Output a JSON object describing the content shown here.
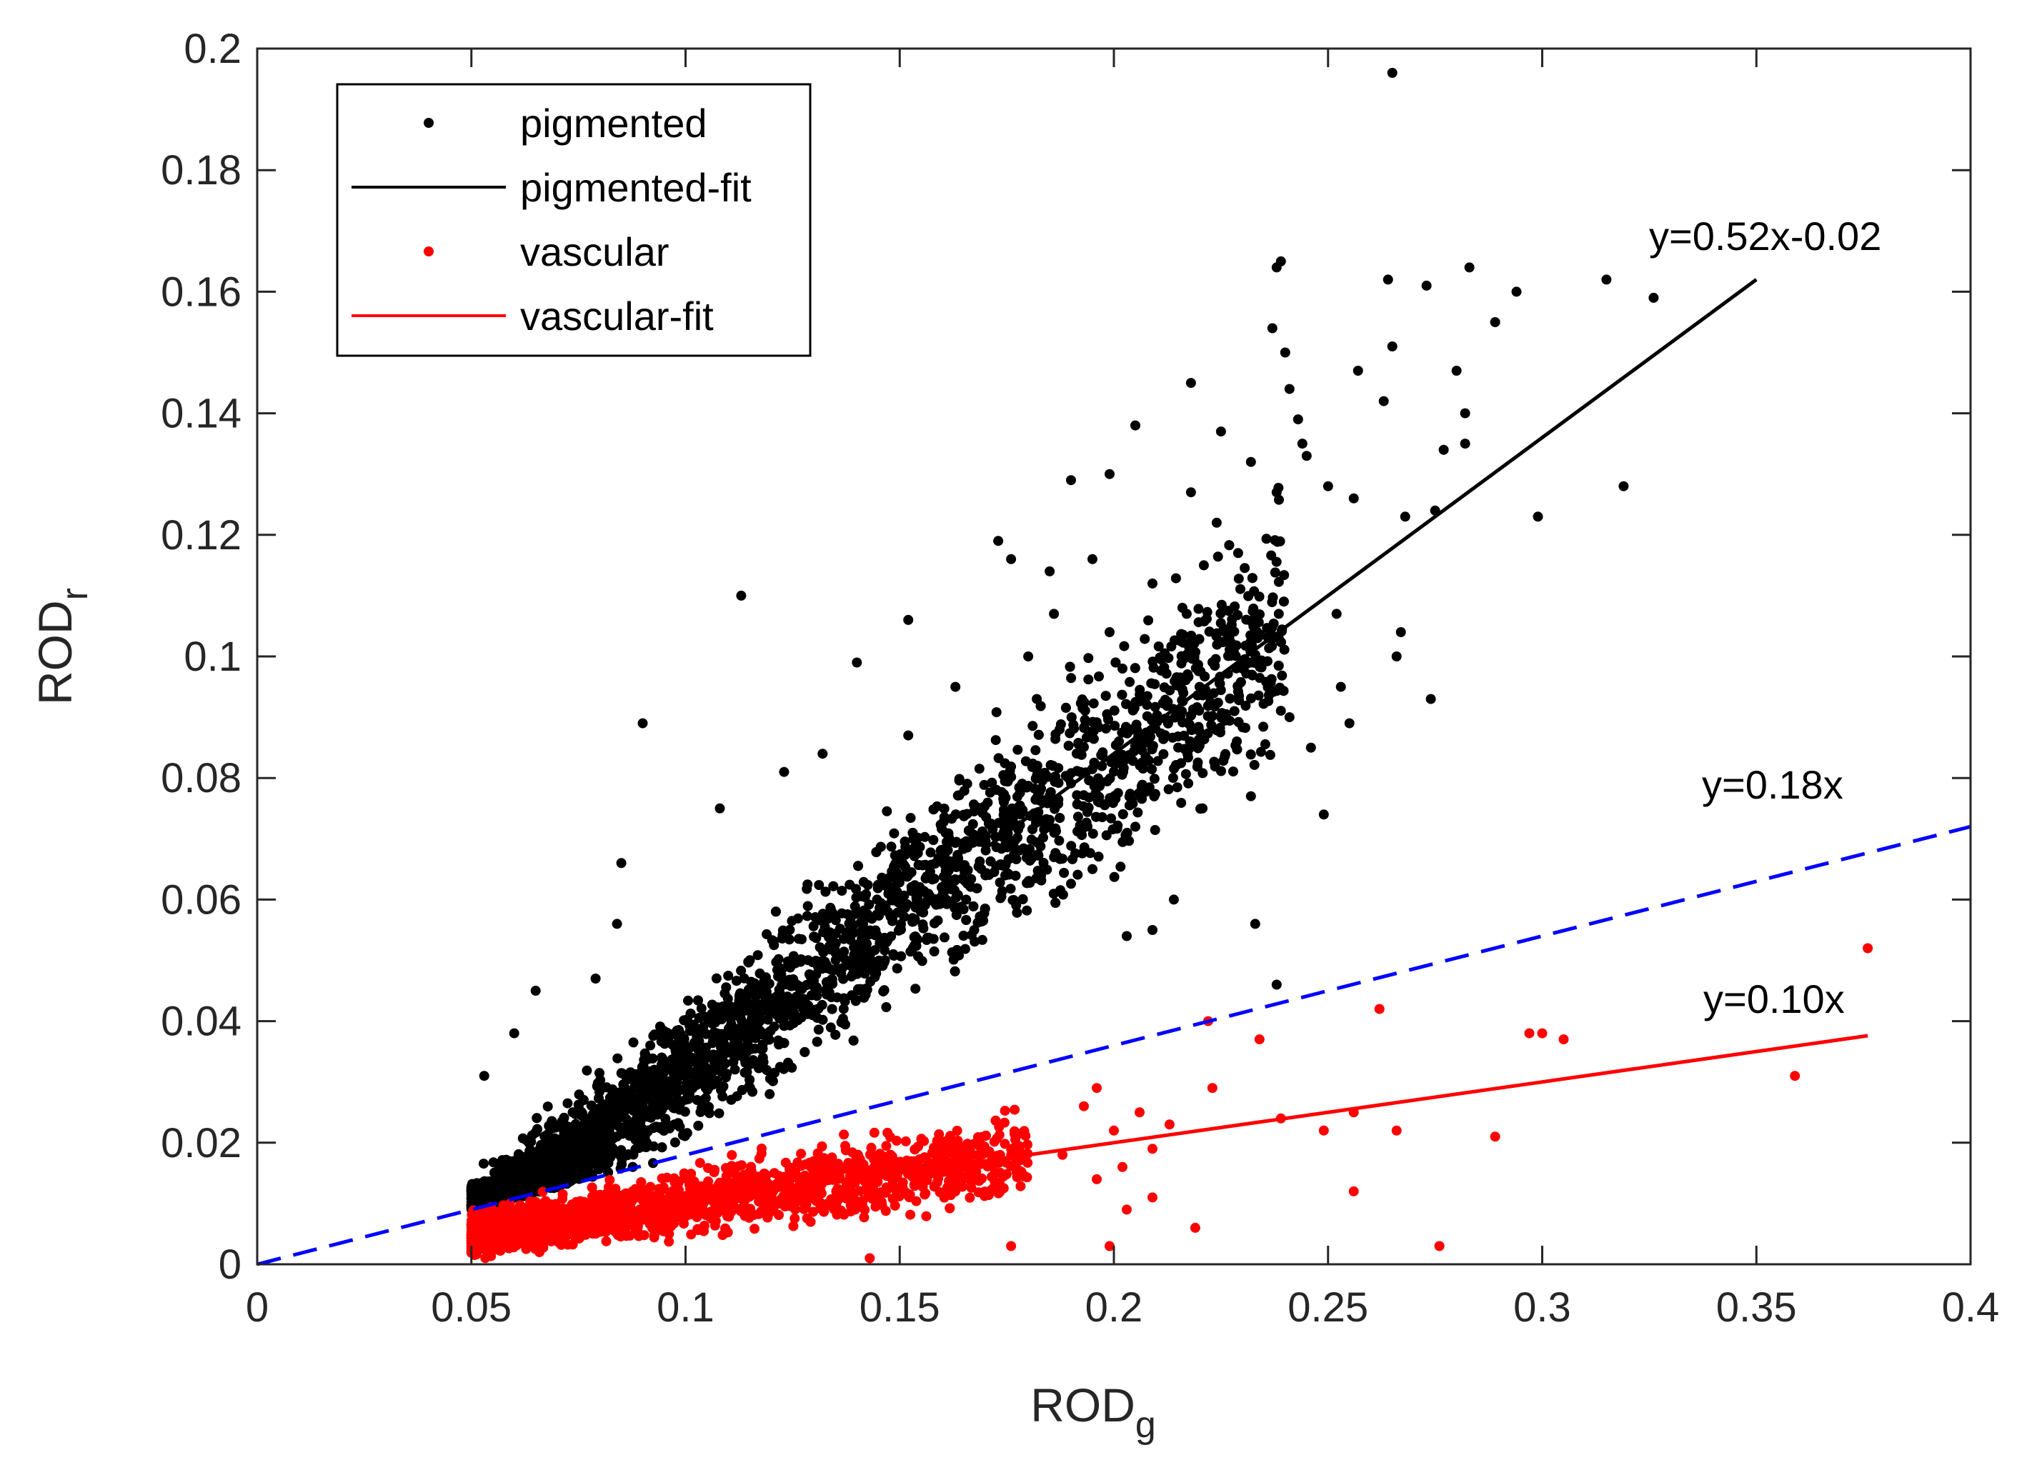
{
  "chart_data": {
    "type": "scatter",
    "title": "",
    "xlabel": "ROD",
    "xlabel_subscript": "g",
    "ylabel": "ROD",
    "ylabel_subscript": "r",
    "xlim": [
      0,
      0.4
    ],
    "ylim": [
      0,
      0.2
    ],
    "xticks": [
      0,
      0.05,
      0.1,
      0.15,
      0.2,
      0.25,
      0.3,
      0.35,
      0.4
    ],
    "xtick_labels": [
      "0",
      "0.05",
      "0.1",
      "0.15",
      "0.2",
      "0.25",
      "0.3",
      "0.35",
      "0.4"
    ],
    "yticks": [
      0,
      0.02,
      0.04,
      0.06,
      0.08,
      0.1,
      0.12,
      0.14,
      0.16,
      0.18,
      0.2
    ],
    "ytick_labels": [
      "0",
      "0.02",
      "0.04",
      "0.06",
      "0.08",
      "0.1",
      "0.12",
      "0.14",
      "0.16",
      "0.18",
      "0.2"
    ],
    "legend_position": "top-left",
    "colors": {
      "pigmented": "#000000",
      "vascular": "#ff0000",
      "threshold": "#0000ff"
    },
    "series": [
      {
        "name": "pigmented",
        "kind": "scatter",
        "color": "#000000",
        "points": [
          [
            0.265,
            0.196
          ],
          [
            0.239,
            0.165
          ],
          [
            0.238,
            0.164
          ],
          [
            0.283,
            0.164
          ],
          [
            0.264,
            0.162
          ],
          [
            0.273,
            0.161
          ],
          [
            0.315,
            0.162
          ],
          [
            0.326,
            0.159
          ],
          [
            0.294,
            0.16
          ],
          [
            0.289,
            0.155
          ],
          [
            0.237,
            0.154
          ],
          [
            0.24,
            0.15
          ],
          [
            0.265,
            0.151
          ],
          [
            0.257,
            0.147
          ],
          [
            0.28,
            0.147
          ],
          [
            0.218,
            0.145
          ],
          [
            0.241,
            0.144
          ],
          [
            0.263,
            0.142
          ],
          [
            0.282,
            0.14
          ],
          [
            0.243,
            0.139
          ],
          [
            0.205,
            0.138
          ],
          [
            0.225,
            0.137
          ],
          [
            0.244,
            0.135
          ],
          [
            0.277,
            0.134
          ],
          [
            0.282,
            0.135
          ],
          [
            0.199,
            0.13
          ],
          [
            0.19,
            0.129
          ],
          [
            0.256,
            0.126
          ],
          [
            0.232,
            0.132
          ],
          [
            0.218,
            0.127
          ],
          [
            0.238,
            0.127
          ],
          [
            0.299,
            0.123
          ],
          [
            0.319,
            0.128
          ],
          [
            0.224,
            0.122
          ],
          [
            0.245,
            0.133
          ],
          [
            0.25,
            0.128
          ],
          [
            0.268,
            0.123
          ],
          [
            0.221,
            0.115
          ],
          [
            0.176,
            0.116
          ],
          [
            0.195,
            0.116
          ],
          [
            0.173,
            0.119
          ],
          [
            0.185,
            0.114
          ],
          [
            0.209,
            0.112
          ],
          [
            0.229,
            0.117
          ],
          [
            0.275,
            0.124
          ],
          [
            0.113,
            0.11
          ],
          [
            0.217,
            0.107
          ],
          [
            0.216,
            0.108
          ],
          [
            0.252,
            0.107
          ],
          [
            0.267,
            0.104
          ],
          [
            0.226,
            0.104
          ],
          [
            0.186,
            0.107
          ],
          [
            0.199,
            0.104
          ],
          [
            0.152,
            0.106
          ],
          [
            0.253,
            0.095
          ],
          [
            0.266,
            0.1
          ],
          [
            0.274,
            0.093
          ],
          [
            0.18,
            0.1
          ],
          [
            0.202,
            0.098
          ],
          [
            0.232,
            0.099
          ],
          [
            0.241,
            0.09
          ],
          [
            0.255,
            0.089
          ],
          [
            0.22,
            0.095
          ],
          [
            0.14,
            0.099
          ],
          [
            0.163,
            0.095
          ],
          [
            0.182,
            0.093
          ],
          [
            0.09,
            0.089
          ],
          [
            0.123,
            0.081
          ],
          [
            0.132,
            0.084
          ],
          [
            0.152,
            0.087
          ],
          [
            0.246,
            0.085
          ],
          [
            0.249,
            0.074
          ],
          [
            0.232,
            0.077
          ],
          [
            0.238,
            0.046
          ],
          [
            0.233,
            0.056
          ],
          [
            0.214,
            0.06
          ],
          [
            0.209,
            0.055
          ],
          [
            0.203,
            0.054
          ],
          [
            0.195,
            0.065
          ],
          [
            0.085,
            0.066
          ],
          [
            0.084,
            0.056
          ],
          [
            0.108,
            0.075
          ],
          [
            0.065,
            0.045
          ],
          [
            0.06,
            0.038
          ],
          [
            0.053,
            0.031
          ],
          [
            0.079,
            0.047
          ]
        ]
      },
      {
        "name": "vascular",
        "kind": "scatter",
        "color": "#ff0000",
        "points": [
          [
            0.376,
            0.052
          ],
          [
            0.262,
            0.042
          ],
          [
            0.222,
            0.04
          ],
          [
            0.234,
            0.037
          ],
          [
            0.297,
            0.038
          ],
          [
            0.3,
            0.038
          ],
          [
            0.305,
            0.037
          ],
          [
            0.359,
            0.031
          ],
          [
            0.223,
            0.029
          ],
          [
            0.256,
            0.025
          ],
          [
            0.239,
            0.024
          ],
          [
            0.249,
            0.022
          ],
          [
            0.266,
            0.022
          ],
          [
            0.289,
            0.021
          ],
          [
            0.256,
            0.012
          ],
          [
            0.219,
            0.006
          ],
          [
            0.276,
            0.003
          ],
          [
            0.199,
            0.003
          ],
          [
            0.176,
            0.003
          ],
          [
            0.143,
            0.001
          ],
          [
            0.196,
            0.029
          ],
          [
            0.193,
            0.026
          ],
          [
            0.206,
            0.025
          ],
          [
            0.213,
            0.023
          ],
          [
            0.2,
            0.022
          ],
          [
            0.209,
            0.019
          ],
          [
            0.188,
            0.018
          ],
          [
            0.202,
            0.016
          ],
          [
            0.196,
            0.014
          ],
          [
            0.209,
            0.011
          ],
          [
            0.203,
            0.009
          ]
        ]
      },
      {
        "name": "pigmented-fit",
        "kind": "line",
        "color": "#000000",
        "slope": 0.52,
        "intercept": -0.02,
        "x_range": [
          0.17,
          0.35
        ],
        "annotation": "y=0.52x-0.02"
      },
      {
        "name": "vascular-fit",
        "kind": "line",
        "color": "#ff0000",
        "slope": 0.1,
        "intercept": 0,
        "x_range": [
          0.117,
          0.376
        ],
        "annotation": "y=0.10x"
      },
      {
        "name": "threshold",
        "kind": "dashed-line",
        "color": "#0000ff",
        "slope": 0.18,
        "intercept": 0,
        "x_range": [
          0,
          0.4
        ],
        "annotation": "y=0.18x"
      }
    ],
    "legend": [
      {
        "label": "pigmented",
        "marker": "dot",
        "color": "#000000"
      },
      {
        "label": "pigmented-fit",
        "marker": "line",
        "color": "#000000"
      },
      {
        "label": "vascular",
        "marker": "dot",
        "color": "#ff0000"
      },
      {
        "label": "vascular-fit",
        "marker": "line",
        "color": "#ff0000"
      }
    ]
  }
}
